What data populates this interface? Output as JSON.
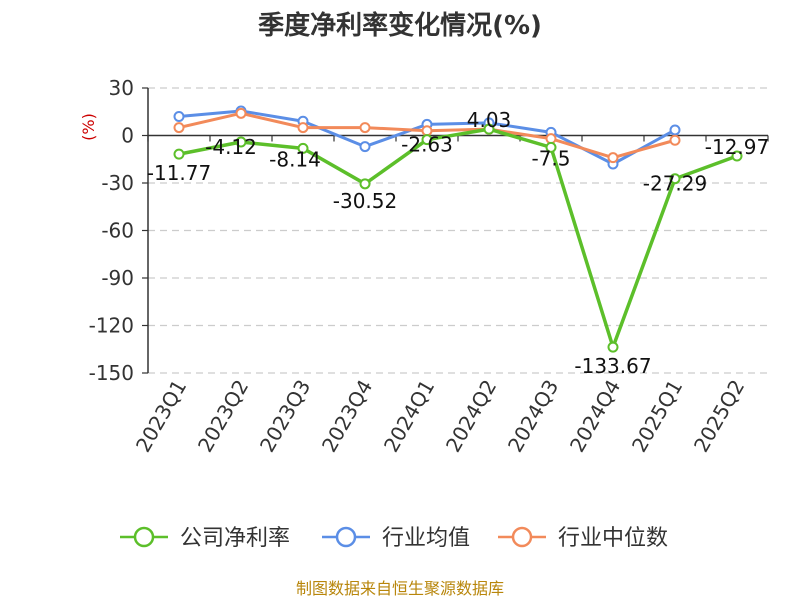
{
  "title": "季度净利率变化情况(%)",
  "source": "制图数据来自恒生聚源数据库",
  "chart_data": {
    "type": "line",
    "title": "季度净利率变化情况(%)",
    "ylabel": "(%)",
    "ylim": [
      -150,
      30
    ],
    "yticks": [
      30,
      0,
      -30,
      -60,
      -90,
      -120,
      -150
    ],
    "grid": true,
    "legend": "bottom",
    "categories": [
      "2023Q1",
      "2023Q2",
      "2023Q3",
      "2023Q4",
      "2024Q1",
      "2024Q2",
      "2024Q3",
      "2024Q4",
      "2025Q1",
      "2025Q2"
    ],
    "series": [
      {
        "name": "公司净利率",
        "color": "#5cbf2a",
        "values": [
          -11.77,
          -4.12,
          -8.14,
          -30.52,
          -2.63,
          4.03,
          -7.5,
          -133.67,
          -27.29,
          -12.97
        ],
        "labels": [
          "-11.77",
          "-4.12",
          "-8.14",
          "-30.52",
          "-2.63",
          "4.03",
          "-7.5",
          "-133.67",
          "-27.29",
          "-12.97"
        ]
      },
      {
        "name": "行业均值",
        "color": "#5b8ee6",
        "values": [
          12,
          15.5,
          9,
          -7,
          7,
          8,
          2,
          -18,
          3.5,
          null
        ]
      },
      {
        "name": "行业中位数",
        "color": "#f28a5a",
        "values": [
          5,
          14,
          5,
          5,
          3,
          4,
          -2,
          -14,
          -3,
          null
        ]
      }
    ]
  }
}
